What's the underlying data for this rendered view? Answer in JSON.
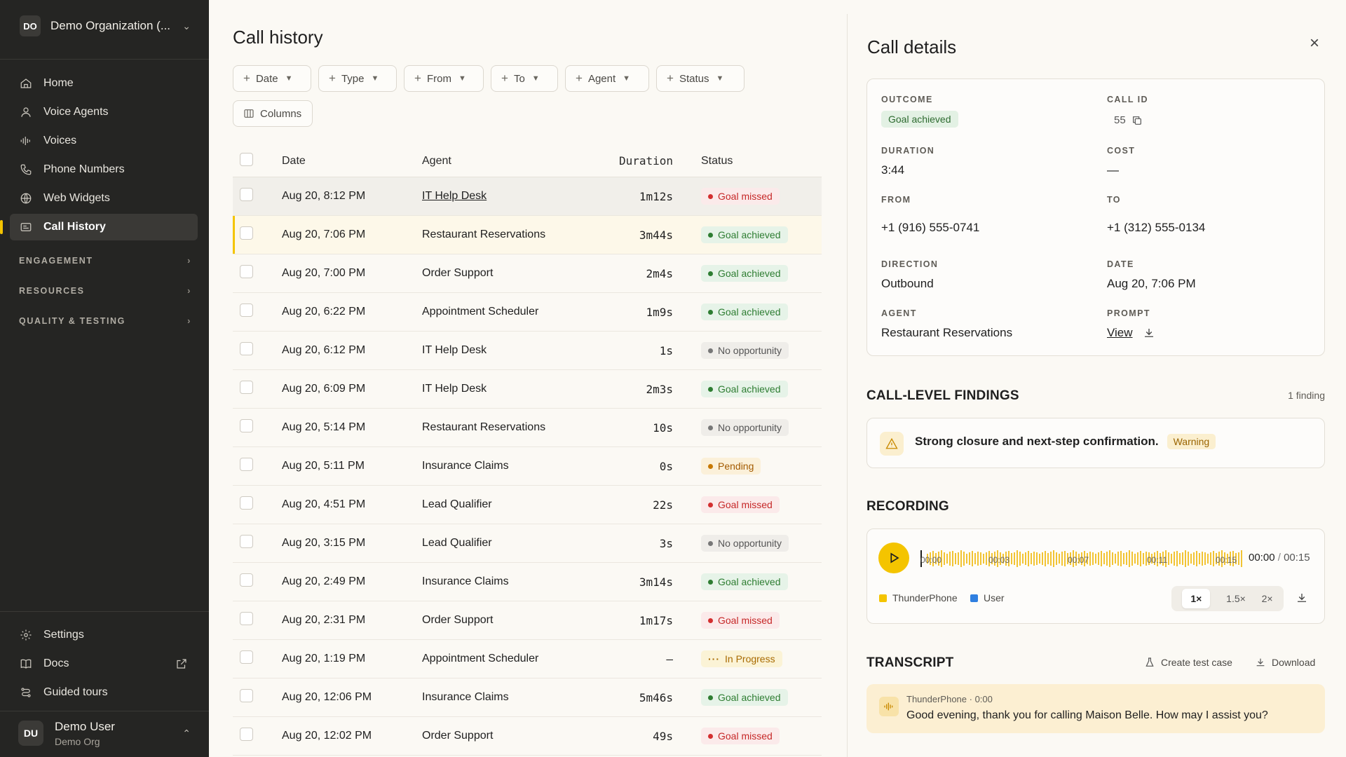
{
  "sidebar": {
    "org": {
      "initials": "DO",
      "name": "Demo Organization (..."
    },
    "nav": [
      {
        "label": "Home",
        "icon": "home-icon"
      },
      {
        "label": "Voice Agents",
        "icon": "person-icon"
      },
      {
        "label": "Voices",
        "icon": "waveform-icon"
      },
      {
        "label": "Phone Numbers",
        "icon": "phone-icon"
      },
      {
        "label": "Web Widgets",
        "icon": "globe-icon"
      },
      {
        "label": "Call History",
        "icon": "history-icon",
        "active": true
      }
    ],
    "sections": [
      "ENGAGEMENT",
      "RESOURCES",
      "QUALITY & TESTING"
    ],
    "bottom": [
      {
        "label": "Settings",
        "icon": "gear-icon"
      },
      {
        "label": "Docs",
        "icon": "book-icon"
      },
      {
        "label": "Guided tours",
        "icon": "route-icon"
      }
    ],
    "user": {
      "initials": "DU",
      "name": "Demo User",
      "org": "Demo Org"
    }
  },
  "main": {
    "title": "Call history",
    "filters": [
      "Date",
      "Type",
      "From",
      "To",
      "Agent",
      "Status"
    ],
    "columns_button": "Columns",
    "headers": {
      "date": "Date",
      "agent": "Agent",
      "duration": "Duration",
      "status": "Status"
    },
    "rows": [
      {
        "date": "Aug 20, 8:12 PM",
        "agent": "IT Help Desk",
        "duration": "1m12s",
        "status": "Goal missed",
        "kind": "missed"
      },
      {
        "date": "Aug 20, 7:06 PM",
        "agent": "Restaurant Reservations",
        "duration": "3m44s",
        "status": "Goal achieved",
        "kind": "achieved"
      },
      {
        "date": "Aug 20, 7:00 PM",
        "agent": "Order Support",
        "duration": "2m4s",
        "status": "Goal achieved",
        "kind": "achieved"
      },
      {
        "date": "Aug 20, 6:22 PM",
        "agent": "Appointment Scheduler",
        "duration": "1m9s",
        "status": "Goal achieved",
        "kind": "achieved"
      },
      {
        "date": "Aug 20, 6:12 PM",
        "agent": "IT Help Desk",
        "duration": "1s",
        "status": "No opportunity",
        "kind": "noopp"
      },
      {
        "date": "Aug 20, 6:09 PM",
        "agent": "IT Help Desk",
        "duration": "2m3s",
        "status": "Goal achieved",
        "kind": "achieved"
      },
      {
        "date": "Aug 20, 5:14 PM",
        "agent": "Restaurant Reservations",
        "duration": "10s",
        "status": "No opportunity",
        "kind": "noopp"
      },
      {
        "date": "Aug 20, 5:11 PM",
        "agent": "Insurance Claims",
        "duration": "0s",
        "status": "Pending",
        "kind": "pending"
      },
      {
        "date": "Aug 20, 4:51 PM",
        "agent": "Lead Qualifier",
        "duration": "22s",
        "status": "Goal missed",
        "kind": "missed"
      },
      {
        "date": "Aug 20, 3:15 PM",
        "agent": "Lead Qualifier",
        "duration": "3s",
        "status": "No opportunity",
        "kind": "noopp"
      },
      {
        "date": "Aug 20, 2:49 PM",
        "agent": "Insurance Claims",
        "duration": "3m14s",
        "status": "Goal achieved",
        "kind": "achieved"
      },
      {
        "date": "Aug 20, 2:31 PM",
        "agent": "Order Support",
        "duration": "1m17s",
        "status": "Goal missed",
        "kind": "missed"
      },
      {
        "date": "Aug 20, 1:19 PM",
        "agent": "Appointment Scheduler",
        "duration": "–",
        "status": "In Progress",
        "kind": "progress"
      },
      {
        "date": "Aug 20, 12:06 PM",
        "agent": "Insurance Claims",
        "duration": "5m46s",
        "status": "Goal achieved",
        "kind": "achieved"
      },
      {
        "date": "Aug 20, 12:02 PM",
        "agent": "Order Support",
        "duration": "49s",
        "status": "Goal missed",
        "kind": "missed"
      }
    ]
  },
  "details": {
    "title": "Call details",
    "outcome_label": "OUTCOME",
    "outcome": "Goal achieved",
    "callid_label": "CALL ID",
    "callid": "55",
    "duration_label": "DURATION",
    "duration": "3:44",
    "cost_label": "COST",
    "cost": "—",
    "from_label": "FROM",
    "from": "+1 (916) 555-0741",
    "to_label": "TO",
    "to": "+1 (312) 555-0134",
    "direction_label": "DIRECTION",
    "direction": "Outbound",
    "date_label": "DATE",
    "date": "Aug 20, 7:06 PM",
    "agent_label": "AGENT",
    "agent": "Restaurant Reservations",
    "prompt_label": "PROMPT",
    "prompt_link": "View",
    "findings_title": "CALL-LEVEL FINDINGS",
    "findings_count": "1 finding",
    "finding_text": "Strong closure and next-step confirmation.",
    "finding_badge": "Warning",
    "recording_title": "RECORDING",
    "time_current": "00:00",
    "time_sep": "/",
    "time_total": "00:15",
    "ticks": [
      "00:00",
      "00:03",
      "00:07",
      "00:11",
      "00:15"
    ],
    "legend": [
      {
        "label": "ThunderPhone",
        "color": "#f4c400"
      },
      {
        "label": "User",
        "color": "#2f7fe0"
      }
    ],
    "speeds": [
      "1×",
      "1.5×",
      "2×"
    ],
    "transcript_title": "TRANSCRIPT",
    "create_test": "Create test case",
    "download": "Download",
    "transcript": {
      "speaker": "ThunderPhone · 0:00",
      "text": "Good evening, thank you for calling Maison Belle. How may I assist you?"
    }
  }
}
